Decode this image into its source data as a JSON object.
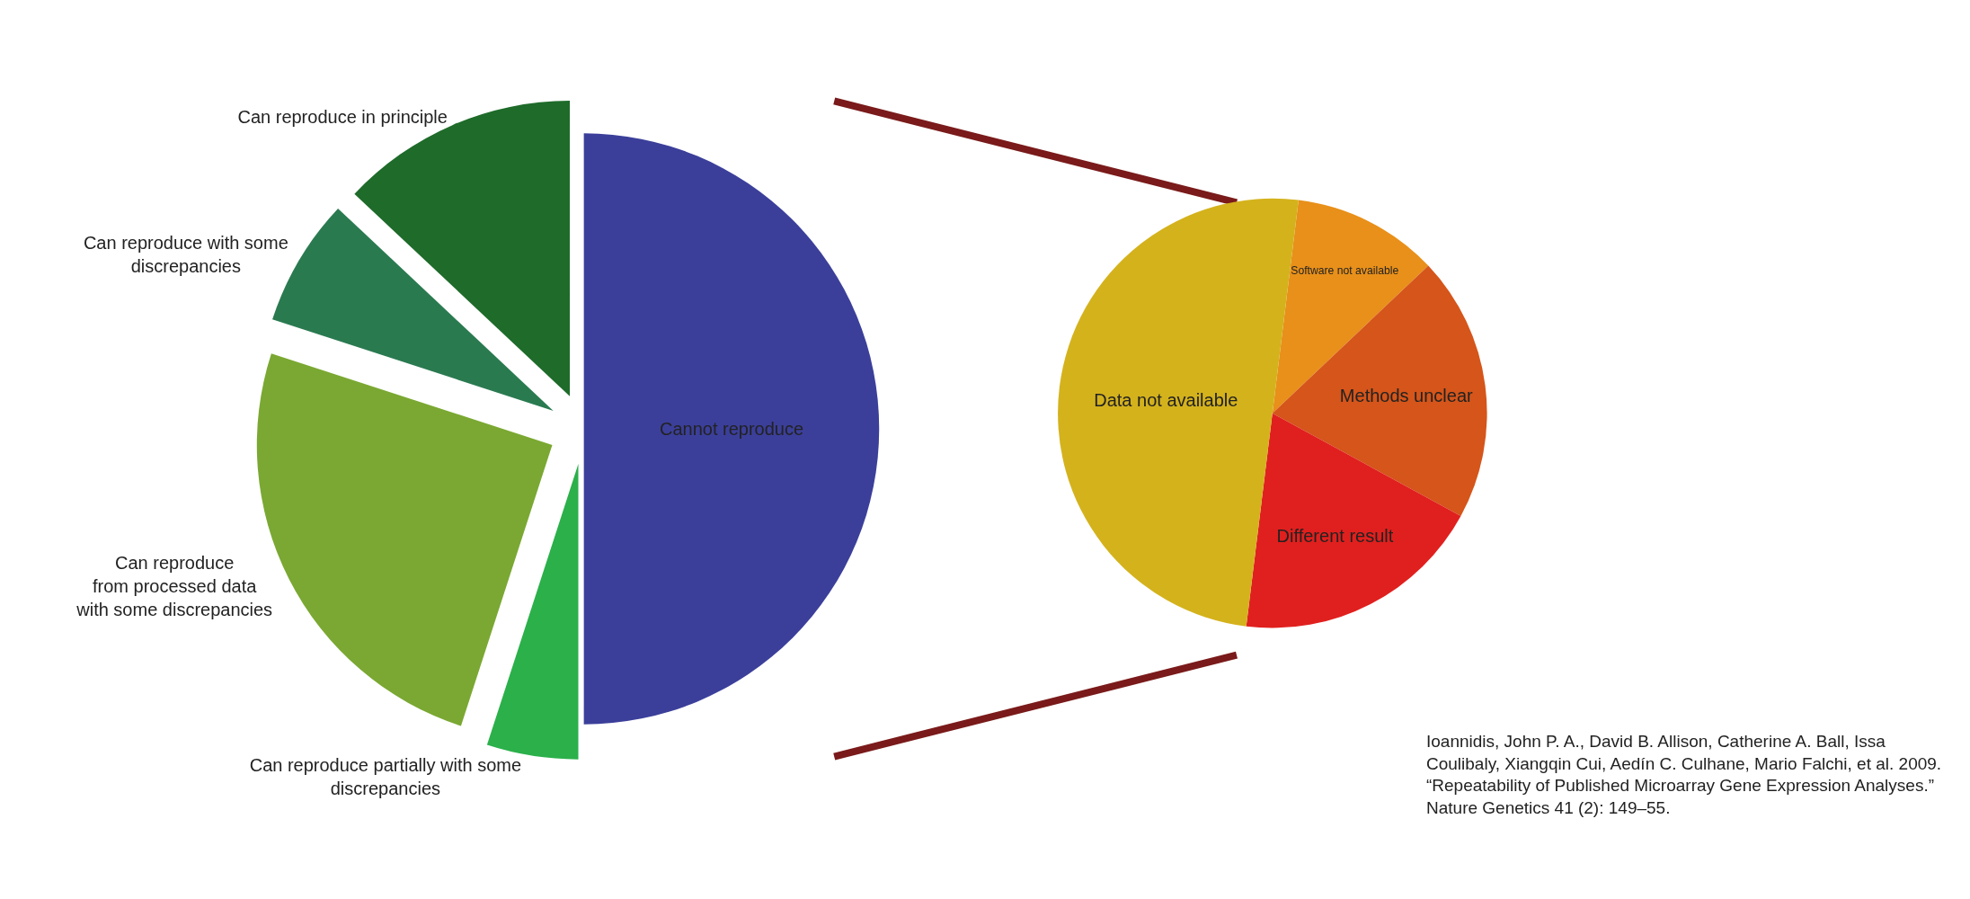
{
  "chart_data": [
    {
      "type": "pie",
      "categories": [
        "Cannot reproduce",
        "Can reproduce partially with some\ndiscrepancies",
        "Can reproduce\nfrom processed data\nwith some discrepancies",
        "Can reproduce with some\ndiscrepancies",
        "Can reproduce in principle"
      ],
      "values": [
        50,
        5,
        25,
        7,
        13
      ],
      "colors": [
        "#3b3f9a",
        "#2bb04a",
        "#7aa832",
        "#2a7a50",
        "#1e6b2a"
      ]
    },
    {
      "type": "pie",
      "categories": [
        "Software not available",
        "Methods unclear",
        "Different result",
        "Data not available"
      ],
      "values": [
        11,
        20,
        19,
        50
      ],
      "colors": [
        "#e8901a",
        "#d5551a",
        "#e0201e",
        "#d4b21c"
      ],
      "annotations": [
        "Ioannidis, John P. A., David B. Allison, Catherine A. Ball, Issa\nCoulibaly, Xiangqin Cui, Aedín C. Culhane, Mario Falchi, et al. 2009.\n“Repeatability of Published Microarray Gene Expression Analyses.”\nNature Genetics 41 (2): 149–55."
      ]
    }
  ]
}
